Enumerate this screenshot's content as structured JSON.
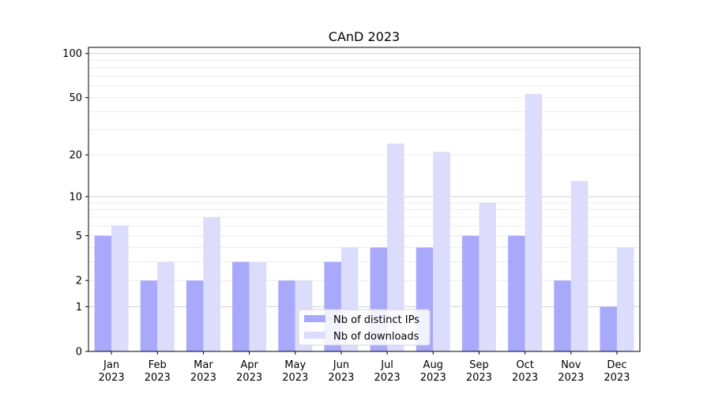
{
  "chart_data": {
    "type": "bar",
    "title": "CAnD 2023",
    "xlabel": "",
    "ylabel": "",
    "yscale": "log(1+y)",
    "ylim": [
      0,
      110
    ],
    "yticks": [
      0,
      1,
      2,
      5,
      10,
      20,
      50,
      100
    ],
    "grid": true,
    "legend_position": "bottom-center",
    "categories": [
      {
        "month": "Jan",
        "year": "2023"
      },
      {
        "month": "Feb",
        "year": "2023"
      },
      {
        "month": "Mar",
        "year": "2023"
      },
      {
        "month": "Apr",
        "year": "2023"
      },
      {
        "month": "May",
        "year": "2023"
      },
      {
        "month": "Jun",
        "year": "2023"
      },
      {
        "month": "Jul",
        "year": "2023"
      },
      {
        "month": "Aug",
        "year": "2023"
      },
      {
        "month": "Sep",
        "year": "2023"
      },
      {
        "month": "Oct",
        "year": "2023"
      },
      {
        "month": "Nov",
        "year": "2023"
      },
      {
        "month": "Dec",
        "year": "2023"
      }
    ],
    "series": [
      {
        "name": "Nb of distinct IPs",
        "color": "#a9a9fb",
        "values": [
          5,
          2,
          2,
          3,
          2,
          3,
          4,
          4,
          5,
          5,
          2,
          1
        ]
      },
      {
        "name": "Nb of downloads",
        "color": "#dcdcfd",
        "values": [
          6,
          3,
          7,
          3,
          2,
          4,
          24,
          21,
          9,
          53,
          13,
          4
        ]
      }
    ]
  }
}
